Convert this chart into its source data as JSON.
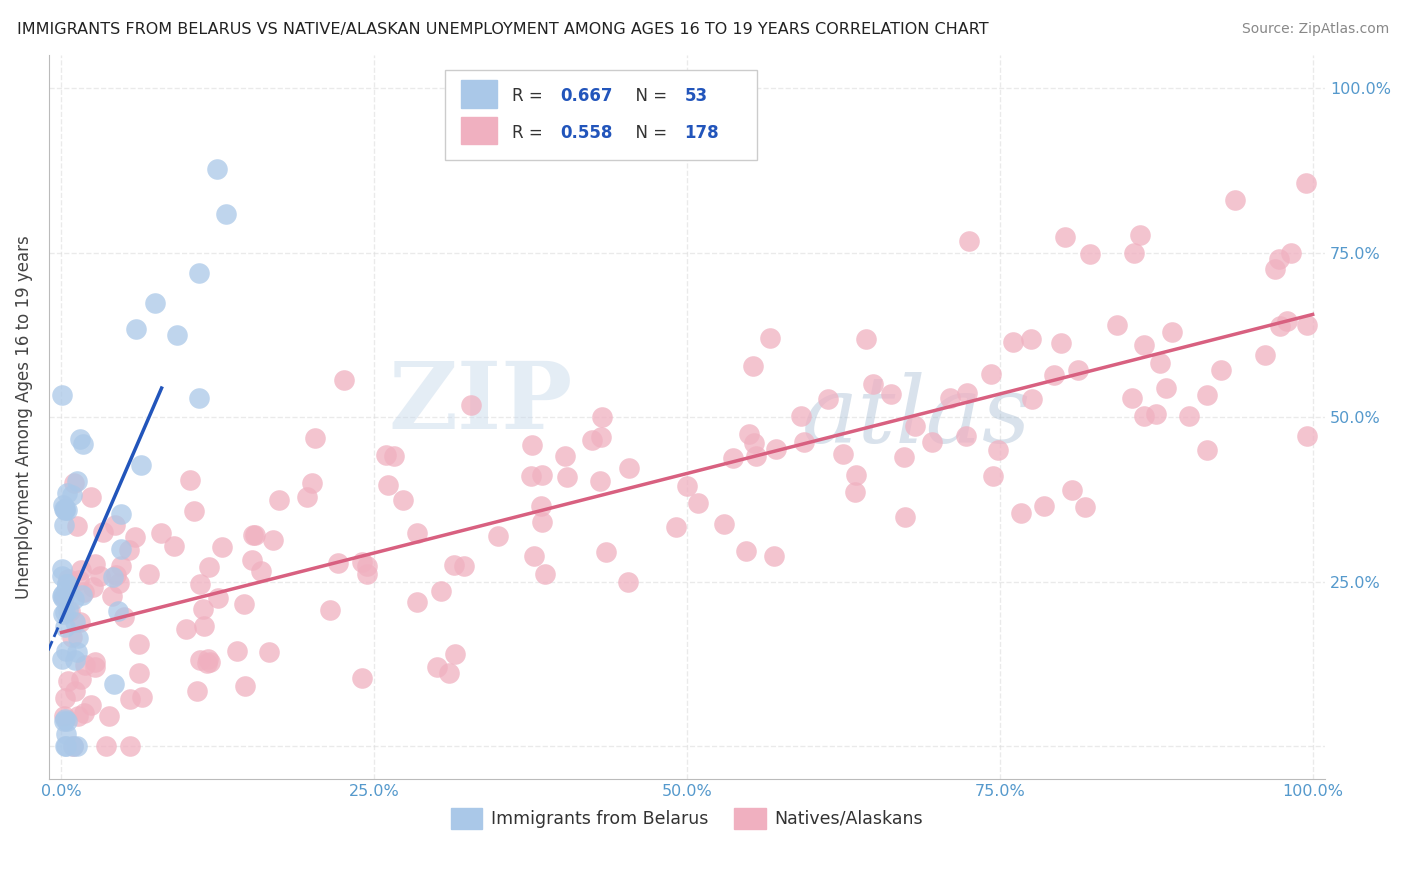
{
  "title": "IMMIGRANTS FROM BELARUS VS NATIVE/ALASKAN UNEMPLOYMENT AMONG AGES 16 TO 19 YEARS CORRELATION CHART",
  "source": "Source: ZipAtlas.com",
  "ylabel": "Unemployment Among Ages 16 to 19 years",
  "xlim": [
    -0.01,
    1.01
  ],
  "ylim": [
    -0.05,
    1.05
  ],
  "xticks": [
    0,
    0.25,
    0.5,
    0.75,
    1.0
  ],
  "xticklabels": [
    "0.0%",
    "25.0%",
    "50.0%",
    "75.0%",
    "100.0%"
  ],
  "yticks_right": [
    0.25,
    0.5,
    0.75,
    1.0
  ],
  "ytick_labels_right": [
    "25.0%",
    "50.0%",
    "75.0%",
    "100.0%"
  ],
  "belarus_color": "#aac8e8",
  "native_color": "#f0b0c0",
  "trendline_blue": "#2255bb",
  "trendline_pink": "#d86080",
  "tick_color": "#5599cc",
  "legend_text_color": "#2255bb",
  "legend_r1": "R = 0.667",
  "legend_n1": "N =  53",
  "legend_r2": "R = 0.558",
  "legend_n2": "N = 178",
  "legend_label1": "Immigrants from Belarus",
  "legend_label2": "Natives/Alaskans",
  "watermark_zip": "ZIP",
  "watermark_atlas": "atlas",
  "background_color": "#ffffff",
  "grid_color": "#dddddd",
  "spine_color": "#bbbbbb"
}
